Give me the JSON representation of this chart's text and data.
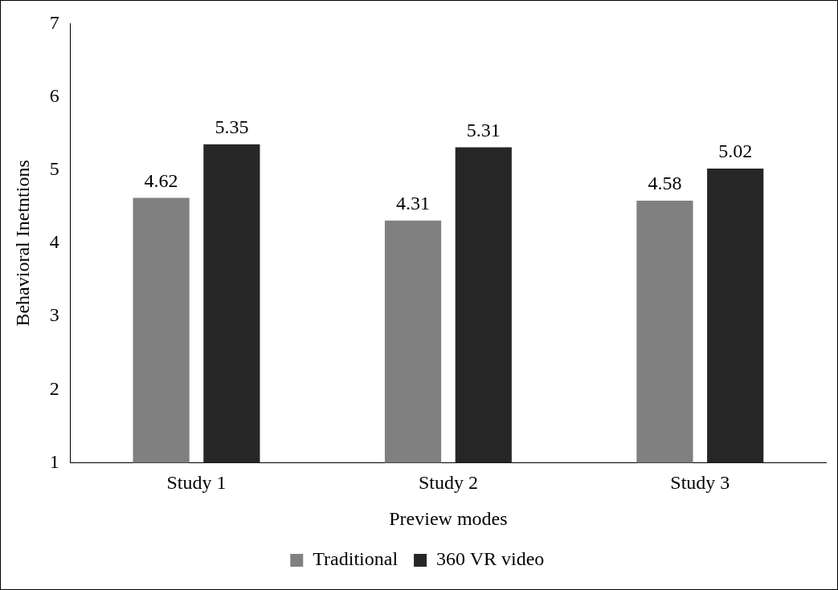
{
  "chart_data": {
    "type": "bar",
    "xlabel": "Preview modes",
    "ylabel": "Behavioral Inetntions",
    "categories": [
      "Study 1",
      "Study 2",
      "Study 3"
    ],
    "series": [
      {
        "name": "Traditional",
        "color": "#808080",
        "values": [
          4.62,
          4.31,
          4.58
        ]
      },
      {
        "name": "360 VR video",
        "color": "#262626",
        "values": [
          5.35,
          5.31,
          5.02
        ]
      }
    ],
    "ylim": [
      1,
      7
    ],
    "yticks": [
      1,
      2,
      3,
      4,
      5,
      6,
      7
    ],
    "grid": false,
    "legend": "bottom",
    "data_labels": true
  }
}
